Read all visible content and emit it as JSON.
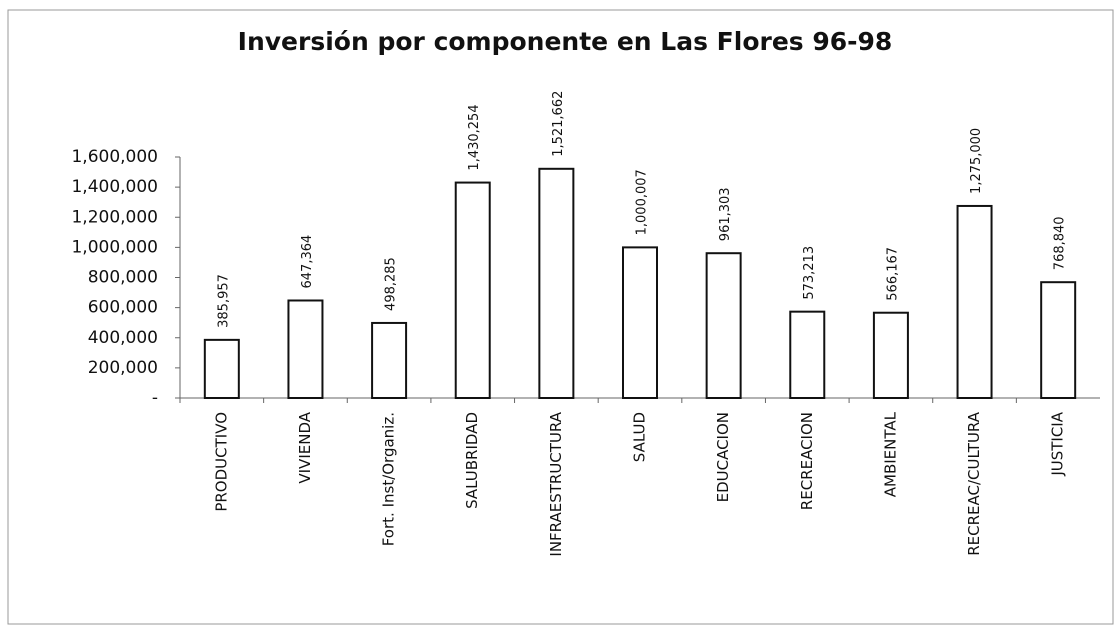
{
  "chart_data": {
    "type": "bar",
    "title": "Inversión por componente en Las Flores 96-98",
    "categories": [
      "PRODUCTIVO",
      "VIVIENDA",
      "Fort. Inst/Organiz.",
      "SALUBRIDAD",
      "INFRAESTRUCTURA",
      "SALUD",
      "EDUCACION",
      "RECREACION",
      "AMBIENTAL",
      "RECREAC/CULTURA",
      "JUSTICIA"
    ],
    "values": [
      385957,
      647364,
      498285,
      1430254,
      1521662,
      1000007,
      961303,
      573213,
      566167,
      1275000,
      768840
    ],
    "value_labels": [
      "385,957",
      "647,364",
      "498,285",
      "1,430,254",
      "1,521,662",
      "1,000,007",
      "961,303",
      "573,213",
      "566,167",
      "1,275,000",
      "768,840"
    ],
    "color": "#ffffff",
    "ylim": [
      0,
      1600000
    ],
    "yticks": [
      {
        "value": 0,
        "label": "-"
      },
      {
        "value": 200000,
        "label": "200,000"
      },
      {
        "value": 400000,
        "label": "400,000"
      },
      {
        "value": 600000,
        "label": "600,000"
      },
      {
        "value": 800000,
        "label": "800,000"
      },
      {
        "value": 1000000,
        "label": "1,000,000"
      },
      {
        "value": 1200000,
        "label": "1,200,000"
      },
      {
        "value": 1400000,
        "label": "1,400,000"
      },
      {
        "value": 1600000,
        "label": "1,600,000"
      }
    ],
    "grid": false
  }
}
